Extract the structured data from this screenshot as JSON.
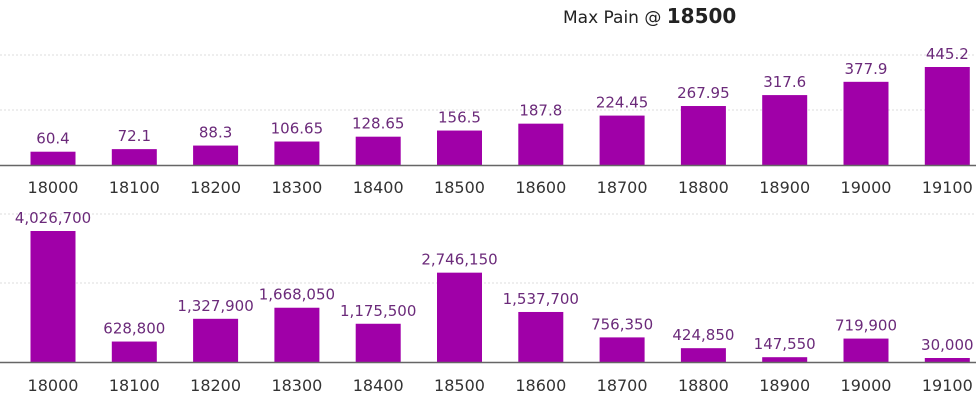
{
  "header": {
    "title_prefix": "Max Pain @",
    "title_value": "18500"
  },
  "colors": {
    "bar": "#a000a8",
    "label": "#6b2a7a",
    "axis": "#666666",
    "grid": "#dddddd"
  },
  "chart_data": [
    {
      "type": "bar",
      "categories": [
        "18000",
        "18100",
        "18200",
        "18300",
        "18400",
        "18500",
        "18600",
        "18700",
        "18800",
        "18900",
        "19000",
        "19100"
      ],
      "values": [
        60.4,
        72.1,
        88.3,
        106.65,
        128.65,
        156.5,
        187.8,
        224.45,
        267.95,
        317.6,
        377.9,
        445.2
      ],
      "labels": [
        "60.4",
        "72.1",
        "88.3",
        "106.65",
        "128.65",
        "156.5",
        "187.8",
        "224.45",
        "267.95",
        "317.6",
        "377.9",
        "445.2"
      ],
      "grid": true
    },
    {
      "type": "bar",
      "categories": [
        "18000",
        "18100",
        "18200",
        "18300",
        "18400",
        "18500",
        "18600",
        "18700",
        "18800",
        "18900",
        "19000",
        "19100"
      ],
      "values": [
        4026700,
        628800,
        1327900,
        1668050,
        1175500,
        2746150,
        1537700,
        756350,
        424850,
        147550,
        719900,
        30000
      ],
      "labels": [
        "4,026,700",
        "628,800",
        "1,327,900",
        "1,668,050",
        "1,175,500",
        "2,746,150",
        "1,537,700",
        "756,350",
        "424,850",
        "147,550",
        "719,900",
        "30,000"
      ],
      "grid": true
    }
  ]
}
